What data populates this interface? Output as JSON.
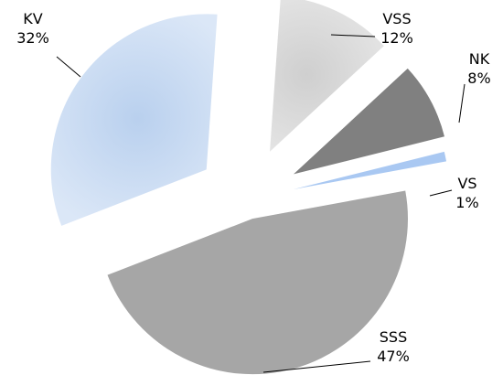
{
  "chart_data": {
    "type": "pie",
    "exploded": true,
    "slices": [
      {
        "name": "VSS",
        "label": "VSS",
        "value": 12,
        "value_label": "12%",
        "color": "#d9d9d9",
        "gradient": true
      },
      {
        "name": "NK",
        "label": "NK",
        "value": 8,
        "value_label": "8%",
        "color": "#808080",
        "gradient": false
      },
      {
        "name": "VS",
        "label": "VS",
        "value": 1,
        "value_label": "1%",
        "color": "#a9c8f2",
        "gradient": false
      },
      {
        "name": "SSS",
        "label": "SSS",
        "value": 47,
        "value_label": "47%",
        "color": "#a6a6a6",
        "gradient": false
      },
      {
        "name": "KV",
        "label": "KV",
        "value": 32,
        "value_label": "32%",
        "color": "#c6d9f1",
        "gradient": true
      }
    ]
  }
}
